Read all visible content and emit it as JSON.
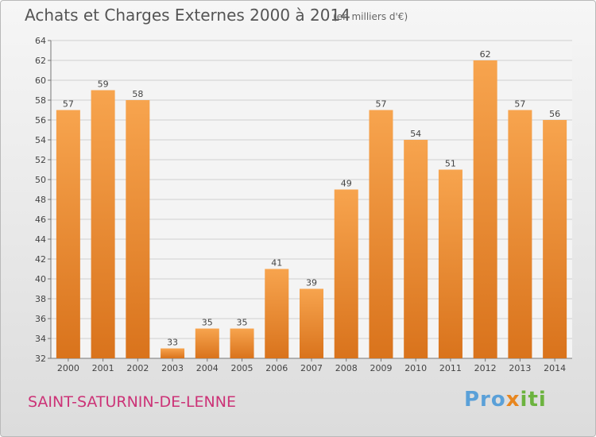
{
  "title": "Achats et Charges Externes 2000 à 2014",
  "subtitle": "(en milliers d'€)",
  "commune": "SAINT-SATURNIN-DE-LENNE",
  "logo": {
    "p1": "Pro",
    "p2": "x",
    "p3": "iti"
  },
  "colors": {
    "bar_top": "#f7a44e",
    "bar_bottom": "#d9731c",
    "grid": "#d0d0d0",
    "axis_text": "#444444"
  },
  "chart_data": {
    "type": "bar",
    "categories": [
      "2000",
      "2001",
      "2002",
      "2003",
      "2004",
      "2005",
      "2006",
      "2007",
      "2008",
      "2009",
      "2010",
      "2011",
      "2012",
      "2013",
      "2014"
    ],
    "values": [
      57,
      59,
      58,
      33,
      35,
      35,
      41,
      39,
      49,
      57,
      54,
      51,
      62,
      57,
      56
    ],
    "ylim": [
      32,
      64
    ],
    "yticks": [
      32,
      34,
      36,
      38,
      40,
      42,
      44,
      46,
      48,
      50,
      52,
      54,
      56,
      58,
      60,
      62,
      64
    ],
    "grid": true
  }
}
